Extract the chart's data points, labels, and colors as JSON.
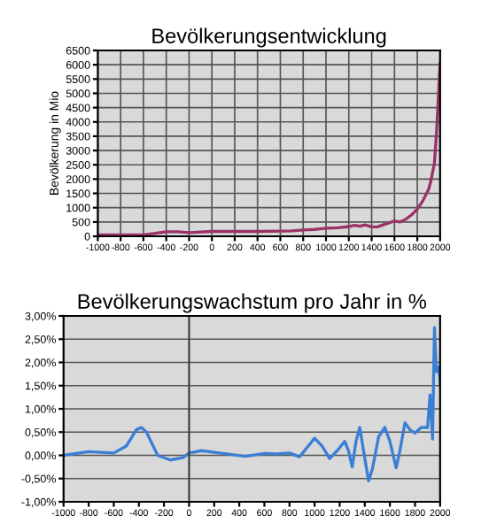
{
  "chart_data": [
    {
      "type": "line",
      "title": "Bevölkerungsentwicklung",
      "ylabel": "Bevölkerung in Mio",
      "grid": true,
      "legend": false,
      "marker": "none",
      "line_style": "solid",
      "xlim": [
        -1000,
        2000
      ],
      "xticks": [
        -1000,
        -800,
        -600,
        -400,
        -200,
        0,
        200,
        400,
        600,
        800,
        1000,
        1200,
        1400,
        1600,
        1800,
        2000
      ],
      "ylim": [
        0,
        6500
      ],
      "yticks": [
        0,
        500,
        1000,
        1500,
        2000,
        2500,
        3000,
        3500,
        4000,
        4500,
        5000,
        5500,
        6000,
        6500
      ],
      "series": [
        {
          "color": "#993366",
          "x": [
            -1000,
            -800,
            -600,
            -500,
            -400,
            -300,
            -200,
            0,
            200,
            400,
            600,
            700,
            800,
            900,
            1000,
            1100,
            1200,
            1250,
            1300,
            1340,
            1400,
            1450,
            1500,
            1600,
            1650,
            1700,
            1750,
            1800,
            1850,
            1900,
            1920,
            1950,
            1970,
            1990,
            2000
          ],
          "values": [
            50,
            50,
            50,
            100,
            160,
            160,
            130,
            170,
            170,
            170,
            180,
            190,
            220,
            240,
            280,
            300,
            340,
            380,
            350,
            400,
            330,
            330,
            400,
            540,
            500,
            600,
            750,
            950,
            1250,
            1650,
            1950,
            2550,
            3700,
            5300,
            6050
          ]
        }
      ]
    },
    {
      "type": "line",
      "title": "Bevölkerungswachstum pro Jahr in %",
      "grid": "y",
      "legend": false,
      "marker": "none",
      "line_style": "solid",
      "xlim": [
        -1000,
        2000
      ],
      "xticks": [
        -1000,
        -800,
        -600,
        -400,
        -200,
        0,
        200,
        400,
        600,
        800,
        1000,
        1200,
        1400,
        1600,
        1800,
        2000
      ],
      "ylim": [
        -1,
        3
      ],
      "yticks": [
        {
          "value": -1,
          "label": "-1,00%"
        },
        {
          "value": -0.5,
          "label": "-0,50%"
        },
        {
          "value": 0,
          "label": "0,00%"
        },
        {
          "value": 0.5,
          "label": "0,50%"
        },
        {
          "value": 1,
          "label": "1,00%"
        },
        {
          "value": 1.5,
          "label": "1,50%"
        },
        {
          "value": 2,
          "label": "2,00%"
        },
        {
          "value": 2.5,
          "label": "2,50%"
        },
        {
          "value": 3,
          "label": "3,00%"
        }
      ],
      "ref_lines": [
        {
          "axis": "x",
          "value": 0,
          "color": "#404040"
        }
      ],
      "series": [
        {
          "color": "#3a7fd5",
          "x": [
            -1000,
            -800,
            -600,
            -500,
            -420,
            -380,
            -340,
            -250,
            -150,
            -50,
            0,
            100,
            300,
            450,
            600,
            700,
            800,
            880,
            950,
            1000,
            1060,
            1120,
            1180,
            1240,
            1270,
            1300,
            1330,
            1360,
            1390,
            1430,
            1460,
            1510,
            1560,
            1600,
            1650,
            1680,
            1720,
            1760,
            1800,
            1850,
            1900,
            1920,
            1940,
            1955,
            1970,
            1990,
            2000
          ],
          "values": [
            0,
            0.08,
            0.05,
            0.2,
            0.55,
            0.6,
            0.5,
            0.0,
            -0.1,
            -0.05,
            0.05,
            0.1,
            0.03,
            -0.02,
            0.04,
            0.03,
            0.05,
            -0.03,
            0.2,
            0.37,
            0.2,
            -0.07,
            0.1,
            0.3,
            0.1,
            -0.25,
            0.3,
            0.6,
            0.1,
            -0.55,
            -0.3,
            0.4,
            0.6,
            0.3,
            -0.27,
            0.1,
            0.7,
            0.55,
            0.48,
            0.6,
            0.6,
            1.3,
            0.35,
            2.75,
            1.8,
            1.9,
            1.55
          ]
        }
      ]
    }
  ]
}
